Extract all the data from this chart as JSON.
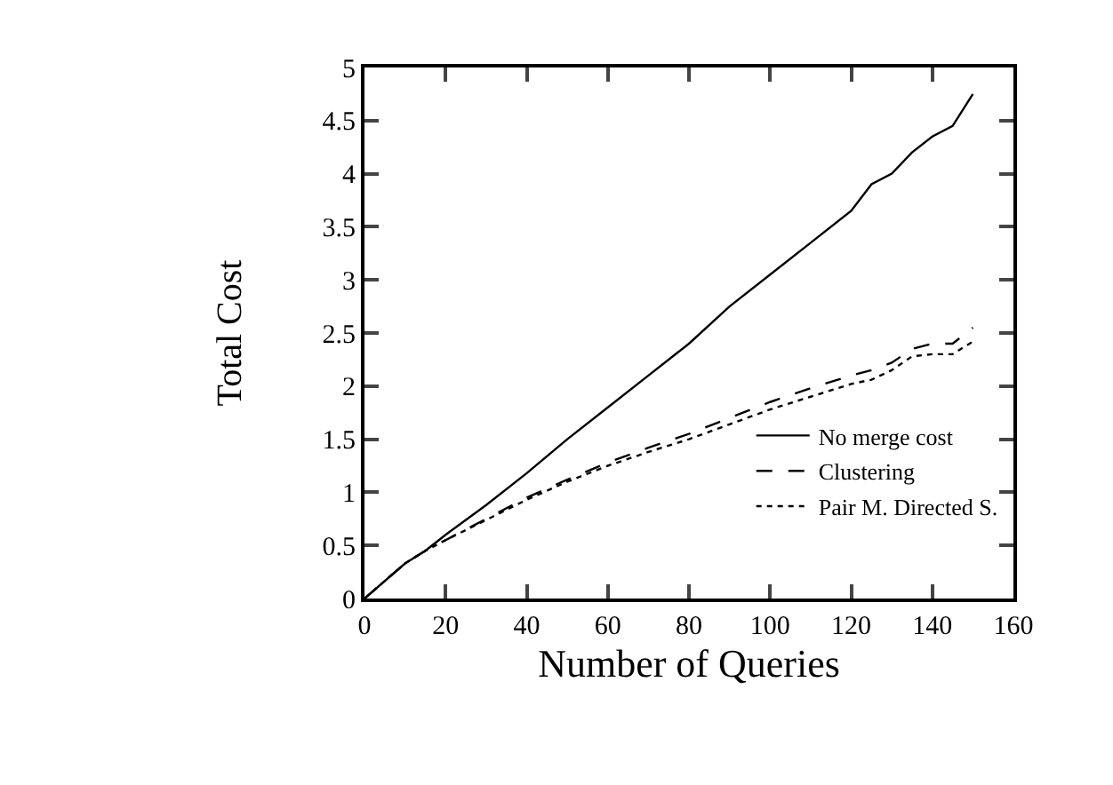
{
  "chart_data": {
    "type": "line",
    "xlabel": "Number of Queries",
    "ylabel": "Total Cost",
    "x": [
      0,
      10,
      15,
      20,
      30,
      40,
      50,
      60,
      70,
      80,
      90,
      100,
      110,
      120,
      125,
      130,
      135,
      140,
      145,
      150
    ],
    "series": [
      {
        "name": "No merge cost",
        "color": "#000000",
        "line_style": "solid",
        "values": [
          0,
          0.33,
          0.45,
          0.6,
          0.88,
          1.18,
          1.5,
          1.8,
          2.1,
          2.4,
          2.75,
          3.05,
          3.35,
          3.65,
          3.9,
          4.0,
          4.2,
          4.35,
          4.45,
          4.75
        ]
      },
      {
        "name": "Clustering",
        "color": "#000000",
        "line_style": "dashed",
        "values": [
          0,
          0.33,
          0.45,
          0.55,
          0.75,
          0.95,
          1.12,
          1.28,
          1.42,
          1.55,
          1.7,
          1.85,
          1.98,
          2.1,
          2.15,
          2.22,
          2.35,
          2.4,
          2.4,
          2.55
        ]
      },
      {
        "name": "Pair M. Directed S.",
        "color": "#000000",
        "line_style": "dotted",
        "values": [
          0,
          0.33,
          0.45,
          0.55,
          0.74,
          0.93,
          1.1,
          1.25,
          1.38,
          1.5,
          1.64,
          1.78,
          1.9,
          2.02,
          2.06,
          2.15,
          2.28,
          2.3,
          2.3,
          2.42
        ]
      }
    ],
    "xlim": [
      0,
      160
    ],
    "xticks": [
      0,
      20,
      40,
      60,
      80,
      100,
      120,
      140,
      160
    ],
    "ylim": [
      0,
      5
    ],
    "yticks": [
      0,
      0.5,
      1,
      1.5,
      2,
      2.5,
      3,
      3.5,
      4,
      4.5,
      5
    ],
    "legend": "right",
    "marker": "none"
  }
}
